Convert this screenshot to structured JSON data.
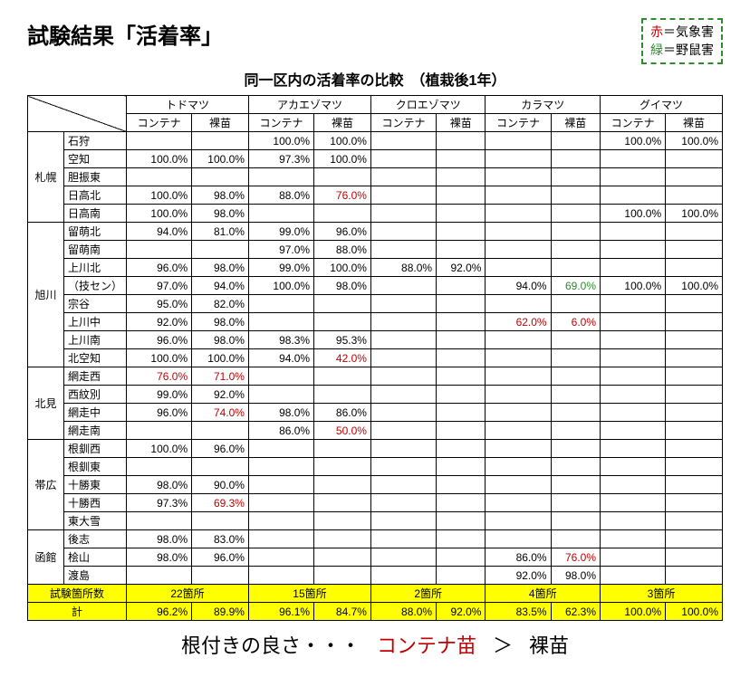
{
  "title": "試験結果「活着率」",
  "subtitle": "同一区内の活着率の比較　（植栽後1年）",
  "legend": {
    "line1_char": "赤",
    "line1_text": "＝気象害",
    "line2_char": "緑",
    "line2_text": "＝野鼠害"
  },
  "species": [
    "トドマツ",
    "アカエゾマツ",
    "クロエゾマツ",
    "カラマツ",
    "グイマツ"
  ],
  "subcols": [
    "コンテナ",
    "裸苗"
  ],
  "regions": [
    {
      "name": "札幌",
      "areas": [
        {
          "name": "石狩",
          "vals": [
            "",
            "",
            "100.0%",
            "100.0%",
            "",
            "",
            "",
            "",
            "100.0%",
            "100.0%"
          ]
        },
        {
          "name": "空知",
          "vals": [
            "100.0%",
            "100.0%",
            "97.3%",
            "100.0%",
            "",
            "",
            "",
            "",
            "",
            ""
          ]
        },
        {
          "name": "胆振東",
          "vals": [
            "",
            "",
            "",
            "",
            "",
            "",
            "",
            "",
            "",
            ""
          ]
        },
        {
          "name": "日高北",
          "vals": [
            "100.0%",
            "98.0%",
            "88.0%",
            {
              "t": "76.0%",
              "c": "red"
            },
            "",
            "",
            "",
            "",
            "",
            ""
          ]
        },
        {
          "name": "日高南",
          "vals": [
            "100.0%",
            "98.0%",
            "",
            "",
            "",
            "",
            "",
            "",
            "100.0%",
            "100.0%"
          ]
        }
      ]
    },
    {
      "name": "旭川",
      "areas": [
        {
          "name": "留萌北",
          "vals": [
            "94.0%",
            "81.0%",
            "99.0%",
            "96.0%",
            "",
            "",
            "",
            "",
            "",
            ""
          ]
        },
        {
          "name": "留萌南",
          "vals": [
            "",
            "",
            "97.0%",
            "88.0%",
            "",
            "",
            "",
            "",
            "",
            ""
          ]
        },
        {
          "name": "上川北",
          "vals": [
            "96.0%",
            "98.0%",
            "99.0%",
            "100.0%",
            "88.0%",
            "92.0%",
            "",
            "",
            "",
            ""
          ]
        },
        {
          "name": "（技セン）",
          "vals": [
            "97.0%",
            "94.0%",
            "100.0%",
            "98.0%",
            "",
            "",
            "94.0%",
            {
              "t": "69.0%",
              "c": "green"
            },
            "100.0%",
            "100.0%"
          ]
        },
        {
          "name": "宗谷",
          "vals": [
            "95.0%",
            "82.0%",
            "",
            "",
            "",
            "",
            "",
            "",
            "",
            ""
          ]
        },
        {
          "name": "上川中",
          "vals": [
            "92.0%",
            "98.0%",
            "",
            "",
            "",
            "",
            {
              "t": "62.0%",
              "c": "red"
            },
            {
              "t": "6.0%",
              "c": "red"
            },
            "",
            ""
          ]
        },
        {
          "name": "上川南",
          "vals": [
            "96.0%",
            "98.0%",
            "98.3%",
            "95.3%",
            "",
            "",
            "",
            "",
            "",
            ""
          ]
        },
        {
          "name": "北空知",
          "vals": [
            "100.0%",
            "100.0%",
            "94.0%",
            {
              "t": "42.0%",
              "c": "red"
            },
            "",
            "",
            "",
            "",
            "",
            ""
          ]
        }
      ]
    },
    {
      "name": "北見",
      "areas": [
        {
          "name": "網走西",
          "vals": [
            {
              "t": "76.0%",
              "c": "red"
            },
            {
              "t": "71.0%",
              "c": "red"
            },
            "",
            "",
            "",
            "",
            "",
            "",
            "",
            ""
          ]
        },
        {
          "name": "西紋別",
          "vals": [
            "99.0%",
            "92.0%",
            "",
            "",
            "",
            "",
            "",
            "",
            "",
            ""
          ]
        },
        {
          "name": "網走中",
          "vals": [
            "96.0%",
            {
              "t": "74.0%",
              "c": "red"
            },
            "98.0%",
            "86.0%",
            "",
            "",
            "",
            "",
            "",
            ""
          ]
        },
        {
          "name": "網走南",
          "vals": [
            "",
            "",
            "86.0%",
            {
              "t": "50.0%",
              "c": "red"
            },
            "",
            "",
            "",
            "",
            "",
            ""
          ]
        }
      ]
    },
    {
      "name": "帯広",
      "areas": [
        {
          "name": "根釧西",
          "vals": [
            "100.0%",
            "96.0%",
            "",
            "",
            "",
            "",
            "",
            "",
            "",
            ""
          ]
        },
        {
          "name": "根釧東",
          "vals": [
            "",
            "",
            "",
            "",
            "",
            "",
            "",
            "",
            "",
            ""
          ]
        },
        {
          "name": "十勝東",
          "vals": [
            "98.0%",
            "90.0%",
            "",
            "",
            "",
            "",
            "",
            "",
            "",
            ""
          ]
        },
        {
          "name": "十勝西",
          "vals": [
            "97.3%",
            {
              "t": "69.3%",
              "c": "red"
            },
            "",
            "",
            "",
            "",
            "",
            "",
            "",
            ""
          ]
        },
        {
          "name": "東大雪",
          "vals": [
            "",
            "",
            "",
            "",
            "",
            "",
            "",
            "",
            "",
            ""
          ]
        }
      ]
    },
    {
      "name": "函館",
      "areas": [
        {
          "name": "後志",
          "vals": [
            "98.0%",
            "83.0%",
            "",
            "",
            "",
            "",
            "",
            "",
            "",
            ""
          ]
        },
        {
          "name": "桧山",
          "vals": [
            "98.0%",
            "96.0%",
            "",
            "",
            "",
            "",
            "86.0%",
            {
              "t": "76.0%",
              "c": "red"
            },
            "",
            ""
          ]
        },
        {
          "name": "渡島",
          "vals": [
            "",
            "",
            "",
            "",
            "",
            "",
            "92.0%",
            "98.0%",
            "",
            ""
          ]
        }
      ]
    }
  ],
  "count_label": "試験箇所数",
  "counts": [
    "22箇所",
    "15箇所",
    "2箇所",
    "4箇所",
    "3箇所"
  ],
  "total_label": "計",
  "totals": [
    "96.2%",
    "89.9%",
    "96.1%",
    "84.7%",
    "88.0%",
    "92.0%",
    "83.5%",
    "62.3%",
    "100.0%",
    "100.0%"
  ],
  "footer": {
    "lead": "根付きの良さ・・・",
    "red": "コンテナ苗",
    "gt": "＞",
    "bare": "裸苗"
  }
}
